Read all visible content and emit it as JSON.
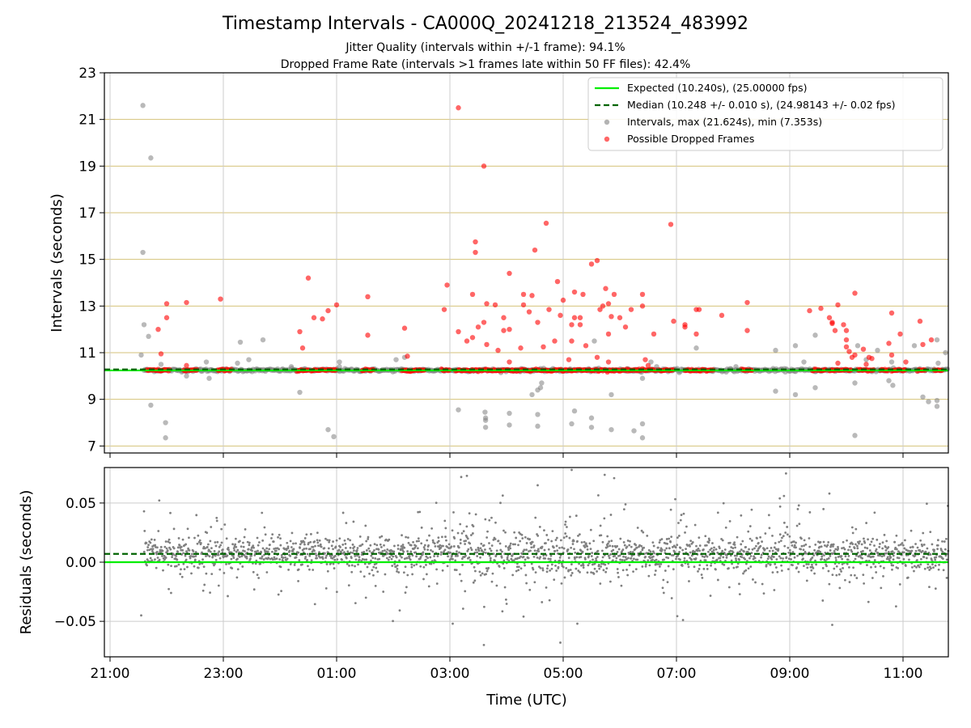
{
  "title": "Timestamp Intervals - CA000Q_20241218_213524_483992",
  "subtitle_1": "Jitter Quality (intervals within +/-1 frame): 94.1%",
  "subtitle_2": "Dropped Frame Rate (intervals >1 frames late within 50 FF files): 42.4%",
  "chart_data": [
    {
      "type": "scatter",
      "panel": "top",
      "ylabel": "Intervals (seconds)",
      "ylim": [
        6.7,
        23
      ],
      "xlim_hours": [
        20.9,
        35.8
      ],
      "yticks": [
        7,
        9,
        11,
        13,
        15,
        17,
        19,
        21,
        23
      ],
      "ytick_labels": [
        "7",
        "9",
        "11",
        "13",
        "15",
        "17",
        "19",
        "21",
        "23"
      ],
      "grid": true,
      "legend_position": "top-right",
      "series": [
        {
          "name": "Expected (10.240s), (25.00000 fps)",
          "kind": "hline",
          "y": 10.24,
          "color": "#00ee00",
          "style": "solid"
        },
        {
          "name": "Median (10.248 +/- 0.010 s), (24.98143 +/- 0.02 fps)",
          "kind": "hline",
          "y": 10.248,
          "color": "#006400",
          "style": "dashed"
        },
        {
          "name": "Intervals, max (21.624s), min (7.353s)",
          "kind": "scatter",
          "color": "#808080",
          "points": [
            [
              21.58,
              21.6
            ],
            [
              21.72,
              19.35
            ],
            [
              21.58,
              15.3
            ],
            [
              21.6,
              12.2
            ],
            [
              21.55,
              10.9
            ],
            [
              21.68,
              11.7
            ],
            [
              21.72,
              8.75
            ],
            [
              21.98,
              8.0
            ],
            [
              21.98,
              7.35
            ],
            [
              21.9,
              10.5
            ],
            [
              22.35,
              10.0
            ],
            [
              22.6,
              10.3
            ],
            [
              22.7,
              10.6
            ],
            [
              22.75,
              9.9
            ],
            [
              23.25,
              10.55
            ],
            [
              23.3,
              11.45
            ],
            [
              23.45,
              10.7
            ],
            [
              23.7,
              11.55
            ],
            [
              24.2,
              10.4
            ],
            [
              24.35,
              9.3
            ],
            [
              24.85,
              7.7
            ],
            [
              24.95,
              7.4
            ],
            [
              25.05,
              10.6
            ],
            [
              25.05,
              10.4
            ],
            [
              26.05,
              10.7
            ],
            [
              26.2,
              10.8
            ],
            [
              27.15,
              8.55
            ],
            [
              27.62,
              8.45
            ],
            [
              27.63,
              8.2
            ],
            [
              27.63,
              8.1
            ],
            [
              27.63,
              7.8
            ],
            [
              28.05,
              8.4
            ],
            [
              28.05,
              7.9
            ],
            [
              28.45,
              9.2
            ],
            [
              28.55,
              9.4
            ],
            [
              28.55,
              8.35
            ],
            [
              28.55,
              7.85
            ],
            [
              28.62,
              9.7
            ],
            [
              28.6,
              9.5
            ],
            [
              29.15,
              7.95
            ],
            [
              29.2,
              8.5
            ],
            [
              29.5,
              8.2
            ],
            [
              29.5,
              7.8
            ],
            [
              29.55,
              11.5
            ],
            [
              29.85,
              9.2
            ],
            [
              29.85,
              7.7
            ],
            [
              30.25,
              7.65
            ],
            [
              30.4,
              7.95
            ],
            [
              30.4,
              7.35
            ],
            [
              30.4,
              9.9
            ],
            [
              30.55,
              10.6
            ],
            [
              30.65,
              10.4
            ],
            [
              31.35,
              11.2
            ],
            [
              32.05,
              10.4
            ],
            [
              32.75,
              9.35
            ],
            [
              32.75,
              11.1
            ],
            [
              33.1,
              11.3
            ],
            [
              33.1,
              9.2
            ],
            [
              33.25,
              10.6
            ],
            [
              33.45,
              11.75
            ],
            [
              33.45,
              9.5
            ],
            [
              34.15,
              9.7
            ],
            [
              34.15,
              7.45
            ],
            [
              34.2,
              11.3
            ],
            [
              34.35,
              10.7
            ],
            [
              34.55,
              11.1
            ],
            [
              34.75,
              9.8
            ],
            [
              34.8,
              10.6
            ],
            [
              34.82,
              9.6
            ],
            [
              35.2,
              11.3
            ],
            [
              35.35,
              9.1
            ],
            [
              35.45,
              8.9
            ],
            [
              35.6,
              8.95
            ],
            [
              35.6,
              8.7
            ],
            [
              35.6,
              11.55
            ],
            [
              35.62,
              10.55
            ],
            [
              35.75,
              11.0
            ]
          ]
        },
        {
          "name": "Possible Dropped Frames",
          "kind": "scatter",
          "color": "#ff0000",
          "points": [
            [
              21.85,
              12.0
            ],
            [
              21.9,
              10.95
            ],
            [
              22.0,
              13.1
            ],
            [
              22.0,
              12.5
            ],
            [
              22.35,
              13.15
            ],
            [
              22.35,
              10.45
            ],
            [
              22.95,
              13.3
            ],
            [
              24.35,
              11.9
            ],
            [
              24.4,
              11.2
            ],
            [
              24.5,
              14.2
            ],
            [
              24.6,
              12.5
            ],
            [
              24.75,
              12.45
            ],
            [
              24.85,
              12.8
            ],
            [
              25.0,
              13.05
            ],
            [
              25.55,
              13.4
            ],
            [
              25.55,
              11.75
            ],
            [
              26.2,
              12.05
            ],
            [
              26.25,
              10.85
            ],
            [
              26.9,
              12.85
            ],
            [
              26.95,
              13.9
            ],
            [
              27.15,
              21.5
            ],
            [
              27.15,
              11.9
            ],
            [
              27.3,
              11.5
            ],
            [
              27.4,
              11.65
            ],
            [
              27.4,
              13.5
            ],
            [
              27.6,
              19.0
            ],
            [
              27.6,
              12.3
            ],
            [
              27.45,
              15.75
            ],
            [
              27.45,
              15.3
            ],
            [
              27.5,
              12.1
            ],
            [
              27.65,
              13.1
            ],
            [
              27.65,
              11.35
            ],
            [
              27.8,
              13.05
            ],
            [
              27.85,
              11.1
            ],
            [
              27.95,
              11.95
            ],
            [
              27.95,
              12.5
            ],
            [
              28.05,
              12.0
            ],
            [
              28.05,
              14.4
            ],
            [
              28.05,
              10.6
            ],
            [
              28.25,
              11.2
            ],
            [
              28.3,
              13.5
            ],
            [
              28.3,
              13.05
            ],
            [
              28.4,
              12.75
            ],
            [
              28.45,
              13.45
            ],
            [
              28.5,
              15.4
            ],
            [
              28.55,
              12.3
            ],
            [
              28.65,
              11.25
            ],
            [
              28.7,
              16.55
            ],
            [
              28.75,
              12.85
            ],
            [
              28.85,
              11.5
            ],
            [
              28.9,
              14.05
            ],
            [
              28.95,
              12.6
            ],
            [
              29.0,
              13.25
            ],
            [
              29.1,
              10.7
            ],
            [
              29.15,
              12.2
            ],
            [
              29.15,
              11.5
            ],
            [
              29.2,
              12.5
            ],
            [
              29.2,
              13.6
            ],
            [
              29.3,
              12.5
            ],
            [
              29.3,
              12.2
            ],
            [
              29.35,
              13.5
            ],
            [
              29.4,
              11.3
            ],
            [
              29.5,
              14.8
            ],
            [
              29.6,
              14.95
            ],
            [
              29.6,
              10.8
            ],
            [
              29.65,
              12.85
            ],
            [
              29.7,
              13.0
            ],
            [
              29.75,
              13.75
            ],
            [
              29.8,
              13.1
            ],
            [
              29.8,
              11.8
            ],
            [
              29.8,
              10.6
            ],
            [
              29.85,
              12.55
            ],
            [
              29.9,
              13.5
            ],
            [
              30.0,
              12.5
            ],
            [
              30.1,
              12.1
            ],
            [
              30.2,
              12.85
            ],
            [
              30.4,
              13.0
            ],
            [
              30.4,
              13.5
            ],
            [
              30.45,
              10.7
            ],
            [
              30.5,
              10.45
            ],
            [
              30.6,
              11.8
            ],
            [
              30.9,
              16.5
            ],
            [
              30.95,
              12.35
            ],
            [
              31.15,
              12.2
            ],
            [
              31.15,
              12.1
            ],
            [
              31.35,
              12.85
            ],
            [
              31.35,
              11.8
            ],
            [
              31.4,
              12.85
            ],
            [
              31.8,
              12.6
            ],
            [
              32.25,
              13.15
            ],
            [
              32.25,
              11.95
            ],
            [
              33.35,
              12.8
            ],
            [
              33.55,
              12.9
            ],
            [
              33.7,
              12.5
            ],
            [
              33.75,
              12.3
            ],
            [
              33.75,
              12.25
            ],
            [
              33.8,
              11.95
            ],
            [
              33.85,
              13.05
            ],
            [
              33.85,
              10.55
            ],
            [
              33.95,
              12.2
            ],
            [
              34.0,
              11.95
            ],
            [
              34.0,
              11.55
            ],
            [
              34.0,
              11.25
            ],
            [
              34.05,
              11.05
            ],
            [
              34.1,
              10.8
            ],
            [
              34.15,
              10.9
            ],
            [
              34.15,
              13.55
            ],
            [
              34.3,
              11.15
            ],
            [
              34.35,
              10.5
            ],
            [
              34.4,
              10.8
            ],
            [
              34.45,
              10.75
            ],
            [
              34.75,
              11.4
            ],
            [
              34.8,
              10.9
            ],
            [
              34.8,
              12.7
            ],
            [
              34.95,
              11.8
            ],
            [
              35.05,
              10.6
            ],
            [
              35.3,
              12.35
            ],
            [
              35.35,
              11.35
            ],
            [
              35.5,
              11.55
            ]
          ],
          "baseline_y": 10.25,
          "baseline_clusters_hours": [
            [
              21.65,
              22.05
            ],
            [
              22.3,
              22.55
            ],
            [
              22.9,
              23.15
            ],
            [
              24.3,
              24.5
            ],
            [
              24.55,
              25.0
            ],
            [
              25.45,
              25.65
            ],
            [
              26.15,
              26.55
            ],
            [
              26.85,
              27.0
            ],
            [
              27.1,
              29.4
            ],
            [
              29.4,
              30.95
            ],
            [
              31.15,
              31.65
            ],
            [
              32.15,
              32.35
            ],
            [
              33.4,
              33.65
            ],
            [
              33.7,
              34.1
            ],
            [
              34.2,
              34.5
            ],
            [
              34.6,
              34.75
            ],
            [
              34.8,
              35.05
            ],
            [
              35.25,
              35.4
            ],
            [
              35.55,
              35.7
            ]
          ]
        }
      ]
    },
    {
      "type": "scatter",
      "panel": "bottom",
      "xlabel": "Time (UTC)",
      "ylabel": "Residuals (seconds)",
      "ylim": [
        -0.08,
        0.08
      ],
      "yticks": [
        -0.05,
        0.0,
        0.05
      ],
      "ytick_labels": [
        "−0.05",
        "0.00",
        "0.05"
      ],
      "xticks_hours": [
        21,
        23,
        25,
        27,
        29,
        31,
        33,
        35
      ],
      "xtick_labels": [
        "21:00",
        "23:00",
        "01:00",
        "03:00",
        "05:00",
        "07:00",
        "09:00",
        "11:00"
      ],
      "grid": true,
      "series": [
        {
          "name": "Expected",
          "kind": "hline",
          "y": 0.0,
          "color": "#00ee00",
          "style": "solid"
        },
        {
          "name": "Median",
          "kind": "hline",
          "y": 0.007,
          "color": "#006400",
          "style": "dashed"
        },
        {
          "name": "Residuals",
          "kind": "scatter-cloud",
          "color": "#808080",
          "center": 0.007,
          "x_range_hours": [
            21.6,
            35.8
          ],
          "count": 2200,
          "spread_sd": [
            [
              21.6,
              0.01
            ],
            [
              27.0,
              0.014
            ],
            [
              29.5,
              0.018
            ],
            [
              30.5,
              0.012
            ],
            [
              33.0,
              0.014
            ],
            [
              35.8,
              0.011
            ]
          ],
          "outliers": [
            [
              27.2,
              0.072
            ],
            [
              27.3,
              0.073
            ],
            [
              28.55,
              0.065
            ],
            [
              29.15,
              0.078
            ],
            [
              29.9,
              0.071
            ],
            [
              27.6,
              -0.07
            ],
            [
              28.95,
              -0.068
            ],
            [
              29.25,
              -0.052
            ],
            [
              28.3,
              -0.046
            ],
            [
              27.05,
              -0.052
            ],
            [
              33.7,
              0.058
            ],
            [
              33.75,
              -0.053
            ],
            [
              21.6,
              0.043
            ],
            [
              21.55,
              -0.045
            ]
          ]
        }
      ]
    }
  ]
}
